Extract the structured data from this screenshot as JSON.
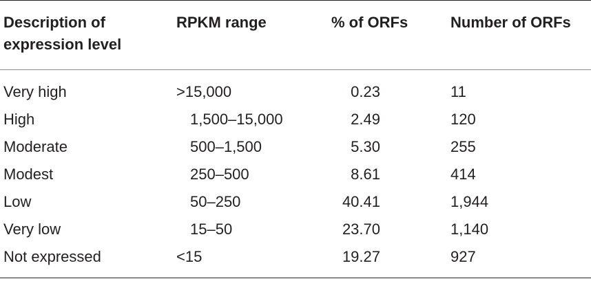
{
  "table": {
    "headers": {
      "description": "Description of\nexpression level",
      "rpkm_range": "RPKM range",
      "pct_orfs": "% of ORFs",
      "num_orfs": "Number of ORFs"
    },
    "rows": [
      {
        "description": "Very high",
        "rpkm_range": ">15,000",
        "pct_orfs": "0.23",
        "num_orfs": "11"
      },
      {
        "description": "High",
        "rpkm_range": "1,500–15,000",
        "pct_orfs": "2.49",
        "num_orfs": "120"
      },
      {
        "description": "Moderate",
        "rpkm_range": "500–1,500",
        "pct_orfs": "5.30",
        "num_orfs": "255"
      },
      {
        "description": "Modest",
        "rpkm_range": "250–500",
        "pct_orfs": "8.61",
        "num_orfs": "414"
      },
      {
        "description": "Low",
        "rpkm_range": "50–250",
        "pct_orfs": "40.41",
        "num_orfs": "1,944"
      },
      {
        "description": "Very low",
        "rpkm_range": "15–50",
        "pct_orfs": "23.70",
        "num_orfs": "1,140"
      },
      {
        "description": "Not expressed",
        "rpkm_range": "<15",
        "pct_orfs": "19.27",
        "num_orfs": "927"
      }
    ]
  }
}
